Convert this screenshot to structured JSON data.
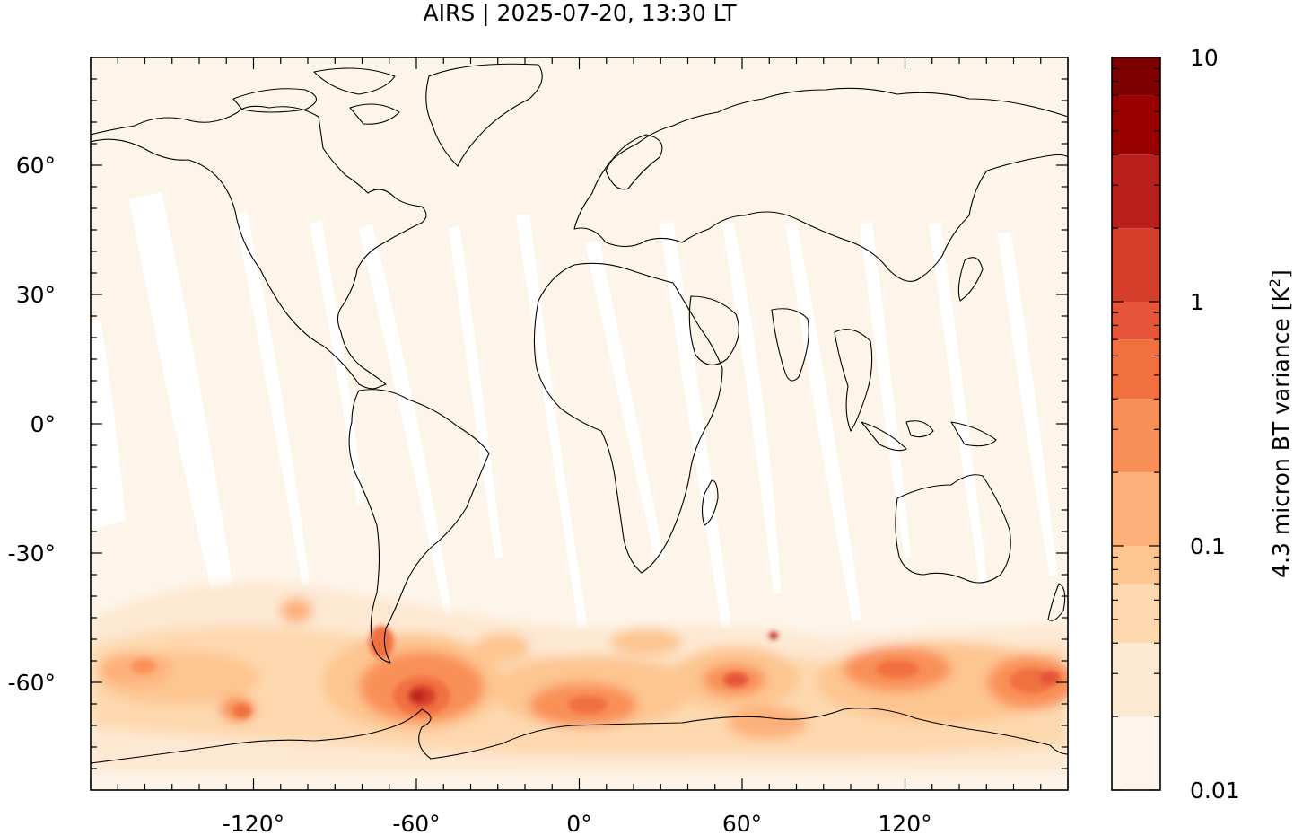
{
  "title": "AIRS | 2025-07-20, 13:30 LT",
  "map": {
    "lon_range": [
      -180,
      180
    ],
    "lat_range": [
      -85,
      85
    ],
    "x_ticks": [
      {
        "value": -120,
        "label": "-120°"
      },
      {
        "value": -60,
        "label": "-60°"
      },
      {
        "value": 0,
        "label": "0°"
      },
      {
        "value": 60,
        "label": "60°"
      },
      {
        "value": 120,
        "label": "120°"
      }
    ],
    "y_ticks": [
      {
        "value": 60,
        "label": "60°"
      },
      {
        "value": 30,
        "label": "30°"
      },
      {
        "value": 0,
        "label": "0°"
      },
      {
        "value": -30,
        "label": "-30°"
      },
      {
        "value": -60,
        "label": "-60°"
      }
    ],
    "background_color": "#fef5ea"
  },
  "colorbar": {
    "label": "4.3 micron BT variance [K",
    "label_superscript": "2",
    "label_close": "]",
    "scale": "log",
    "range": [
      0.01,
      10
    ],
    "tick_labels": [
      {
        "value": 10,
        "label": "10"
      },
      {
        "value": 1,
        "label": "1"
      },
      {
        "value": 0.1,
        "label": "0.1"
      },
      {
        "value": 0.01,
        "label": "0.01"
      }
    ],
    "levels": [
      0.01,
      0.02,
      0.04,
      0.07,
      0.1,
      0.2,
      0.4,
      0.7,
      1,
      2,
      4,
      7,
      10
    ],
    "colors": [
      "#fdf5eb",
      "#fde8d2",
      "#fdd8ae",
      "#fdc590",
      "#fdb07a",
      "#f99059",
      "#f17040",
      "#e6553a",
      "#d53e2b",
      "#b9201c",
      "#990000",
      "#7f0000"
    ]
  }
}
